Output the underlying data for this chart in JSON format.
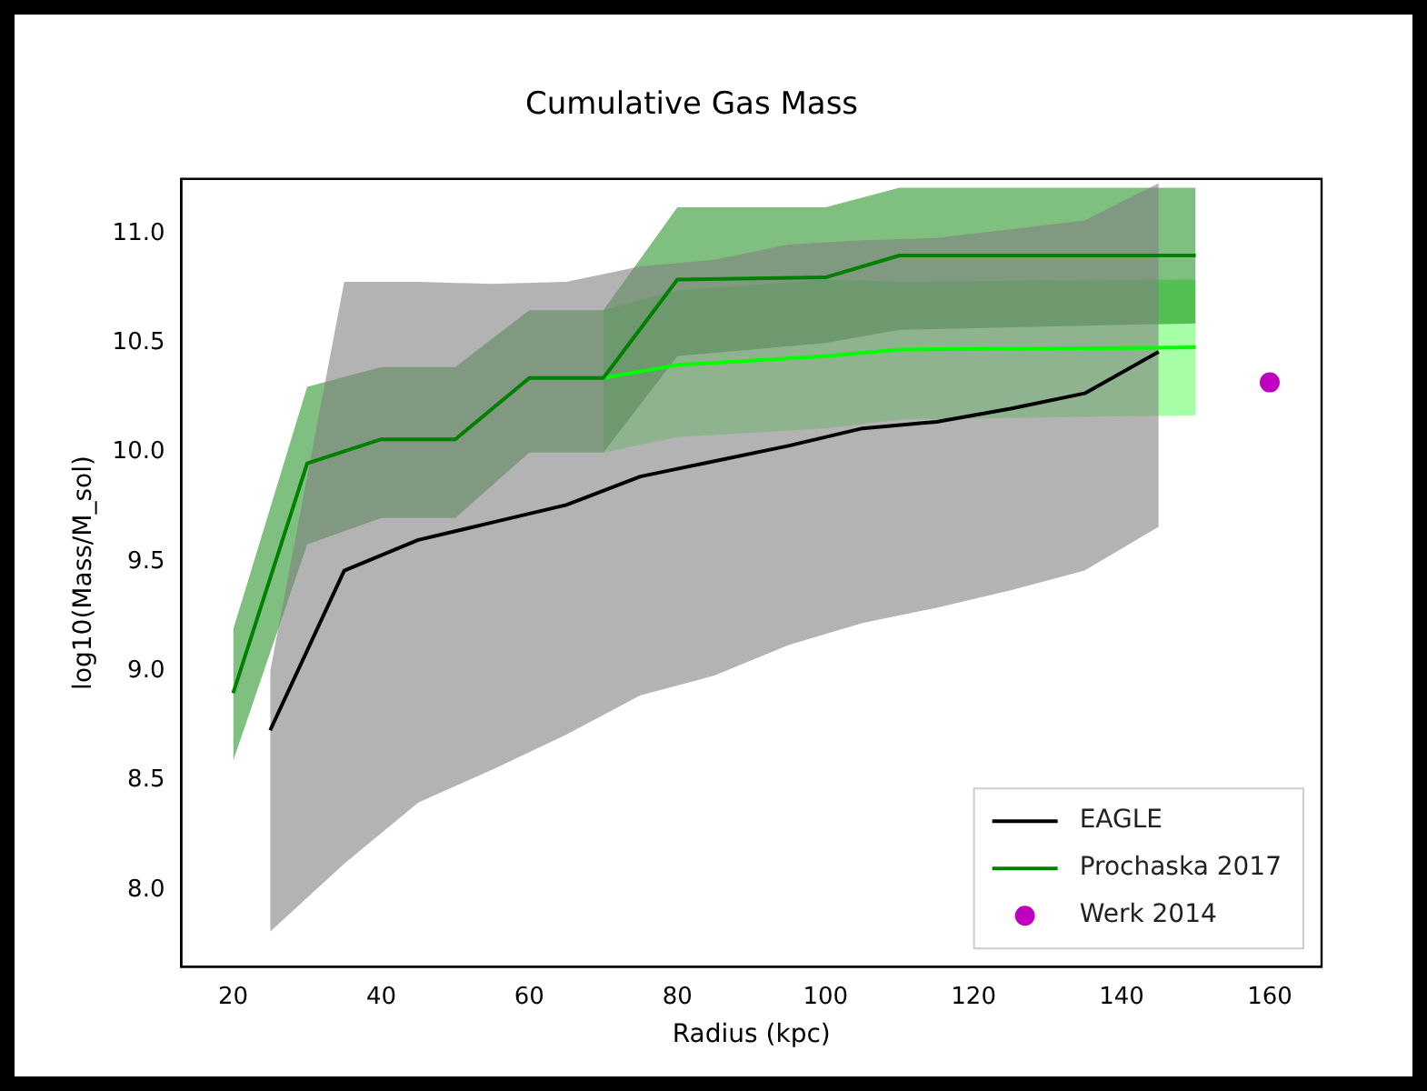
{
  "chart_data": {
    "type": "line",
    "title": "Cumulative Gas Mass",
    "xlabel": "Radius (kpc)",
    "ylabel": "log10(Mass/M_sol)",
    "xlim": [
      13,
      167
    ],
    "ylim": [
      7.65,
      11.25
    ],
    "xticks": [
      20,
      40,
      60,
      80,
      100,
      120,
      140,
      160
    ],
    "yticks": [
      {
        "value": 8,
        "label": "8.0"
      },
      {
        "value": 8.5,
        "label": "8.5"
      },
      {
        "value": 9,
        "label": "9.0"
      },
      {
        "value": 9.5,
        "label": "9.5"
      },
      {
        "value": 10,
        "label": "10.0"
      },
      {
        "value": 10.5,
        "label": "10.5"
      },
      {
        "value": 11,
        "label": "11.0"
      }
    ],
    "grid": false,
    "legend": "bottom right",
    "marker": "none",
    "line_style": "solid",
    "series": [
      {
        "name": "EAGLE",
        "type": "line",
        "color": "#000000",
        "x": [
          25,
          35,
          45,
          55,
          65,
          75,
          85,
          95,
          105,
          115,
          125,
          135,
          145
        ],
        "values": [
          8.73,
          9.46,
          9.6,
          9.68,
          9.76,
          9.89,
          9.96,
          10.03,
          10.11,
          10.14,
          10.2,
          10.27,
          10.46
        ],
        "lower": [
          7.81,
          8.12,
          8.4,
          8.55,
          8.71,
          8.89,
          8.98,
          9.12,
          9.22,
          9.29,
          9.37,
          9.46,
          9.66
        ],
        "upper": [
          9.0,
          10.78,
          10.78,
          10.77,
          10.78,
          10.85,
          10.88,
          10.95,
          10.97,
          10.98,
          11.02,
          11.06,
          11.23
        ]
      },
      {
        "name": "Prochaska 2017",
        "type": "line",
        "color": "#008000",
        "x": [
          20,
          30,
          40,
          50,
          60,
          70,
          80,
          100,
          110,
          150
        ],
        "values": [
          8.9,
          9.95,
          10.06,
          10.06,
          10.34,
          10.34,
          10.79,
          10.8,
          10.9,
          10.9
        ],
        "lower": [
          8.59,
          9.58,
          9.7,
          9.7,
          10.0,
          10.0,
          10.44,
          10.5,
          10.56,
          10.59
        ],
        "upper": [
          9.19,
          10.3,
          10.39,
          10.39,
          10.65,
          10.65,
          11.12,
          11.12,
          11.21,
          11.21
        ]
      },
      {
        "type": "line",
        "color": "#00ff00",
        "x": [
          70,
          80,
          100,
          110,
          150
        ],
        "values": [
          10.34,
          10.4,
          10.44,
          10.47,
          10.48
        ],
        "lower": [
          10.0,
          10.07,
          10.11,
          10.15,
          10.17
        ],
        "upper": [
          10.65,
          10.74,
          10.79,
          10.78,
          10.79
        ]
      },
      {
        "name": "Werk 2014",
        "type": "scatter",
        "marker": "circle",
        "color": "#bf00bf",
        "x": [
          160
        ],
        "values": [
          10.32
        ]
      }
    ]
  }
}
